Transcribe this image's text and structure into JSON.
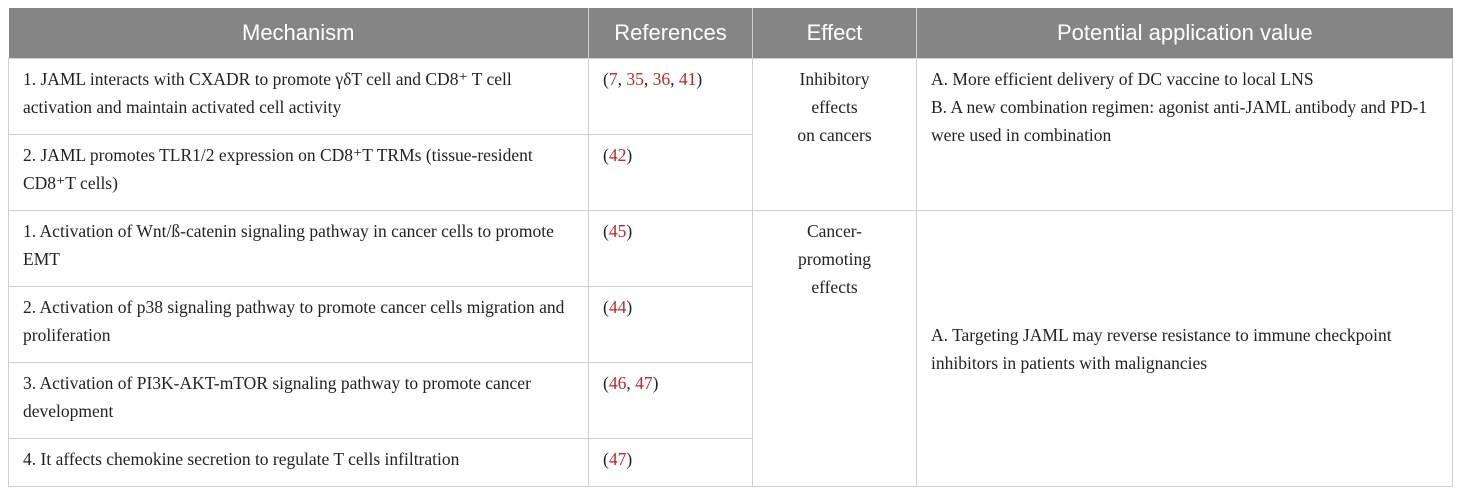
{
  "table": {
    "header": [
      "Mechanism",
      "References",
      "Effect",
      "Potential application value"
    ],
    "groups": [
      {
        "effect": [
          "Inhibitory",
          "effects",
          "on cancers"
        ],
        "application": [
          "A. More efficient delivery of DC vaccine to local LNS",
          "B. A new combination regimen: agonist anti-JAML antibody and PD-1 were used in combination"
        ],
        "rows": [
          {
            "mechanism": "1. JAML interacts with CXADR to promote γδT cell and CD8⁺ T cell activation and maintain activated cell activity",
            "references": "(7, 35, 36, 41)"
          },
          {
            "mechanism": "2. JAML promotes TLR1/2 expression on CD8⁺T TRMs (tissue-resident CD8⁺T cells)",
            "references": "(42)"
          }
        ]
      },
      {
        "effect": [
          "Cancer-",
          "promoting",
          "effects"
        ],
        "application": [
          "A. Targeting JAML may reverse resistance to immune checkpoint inhibitors in patients with malignancies"
        ],
        "rows": [
          {
            "mechanism": "1. Activation of Wnt/ß-catenin signaling pathway in cancer cells to promote EMT",
            "references": "(45)"
          },
          {
            "mechanism": "2. Activation of p38 signaling pathway to promote cancer cells migration and proliferation",
            "references": "(44)"
          },
          {
            "mechanism": "3. Activation of PI3K-AKT-mTOR signaling pathway to promote cancer development",
            "references": "(46, 47)"
          },
          {
            "mechanism": "4. It affects chemokine secretion to regulate T cells infiltration",
            "references": "(47)"
          }
        ]
      }
    ]
  }
}
